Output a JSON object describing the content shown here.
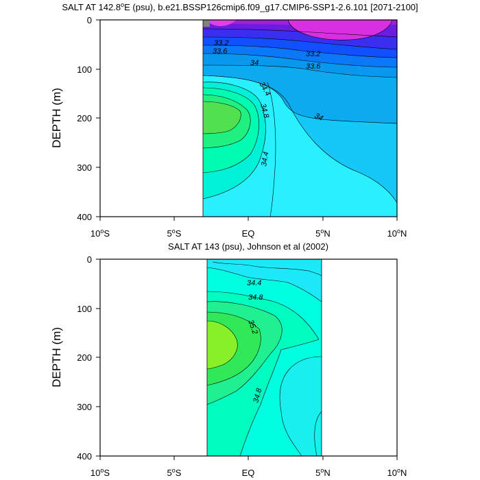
{
  "chart_data": [
    {
      "type": "contour",
      "title_prefix": "SALT AT 142.8",
      "title_superscript": "o",
      "title_suffix": "E (psu), b.e21.BSSP126cmip6.f09_g17.CMIP6-SSP1-2.6.101 [2071-2100]",
      "xlabel": "",
      "ylabel": "DEPTH (m)",
      "xlim": [
        -10,
        10
      ],
      "ylim": [
        400,
        0
      ],
      "data_extent_x": [
        -3.7,
        10
      ],
      "y_ticks": [
        "0",
        "100",
        "200",
        "300",
        "400"
      ],
      "x_ticks": [
        {
          "value": "10",
          "sup": "o",
          "suffix": "S"
        },
        {
          "value": "5",
          "sup": "o",
          "suffix": "S"
        },
        {
          "value": "EQ",
          "sup": "",
          "suffix": ""
        },
        {
          "value": "5",
          "sup": "o",
          "suffix": "N"
        },
        {
          "value": "10",
          "sup": "o",
          "suffix": "N"
        }
      ],
      "contour_labels": [
        "33.2",
        "33.6",
        "33.2",
        "33.6",
        "34",
        "34.4",
        "34.8",
        "34",
        "34.4"
      ],
      "colors": {
        "low": "#c020e0",
        "mid_low": "#1060ff",
        "mid": "#10b0f0",
        "high": "#00ffa0",
        "max": "#50e040"
      }
    },
    {
      "type": "contour",
      "title": "SALT AT 143 (psu), Johnson et al (2002)",
      "xlabel": "",
      "ylabel": "DEPTH (m)",
      "xlim": [
        -10,
        10
      ],
      "ylim": [
        400,
        0
      ],
      "data_extent_x": [
        -3.4,
        5
      ],
      "y_ticks": [
        "0",
        "100",
        "200",
        "300",
        "400"
      ],
      "x_ticks": [
        {
          "value": "10",
          "sup": "o",
          "suffix": "S"
        },
        {
          "value": "5",
          "sup": "o",
          "suffix": "S"
        },
        {
          "value": "EQ",
          "sup": "",
          "suffix": ""
        },
        {
          "value": "5",
          "sup": "o",
          "suffix": "N"
        },
        {
          "value": "10",
          "sup": "o",
          "suffix": "N"
        }
      ],
      "contour_labels": [
        "34.4",
        "34.8",
        "35.2",
        "34.8"
      ],
      "colors": {
        "low": "#20e0f0",
        "mid": "#00ffc8",
        "high": "#20f070",
        "max": "#90f020"
      }
    }
  ]
}
